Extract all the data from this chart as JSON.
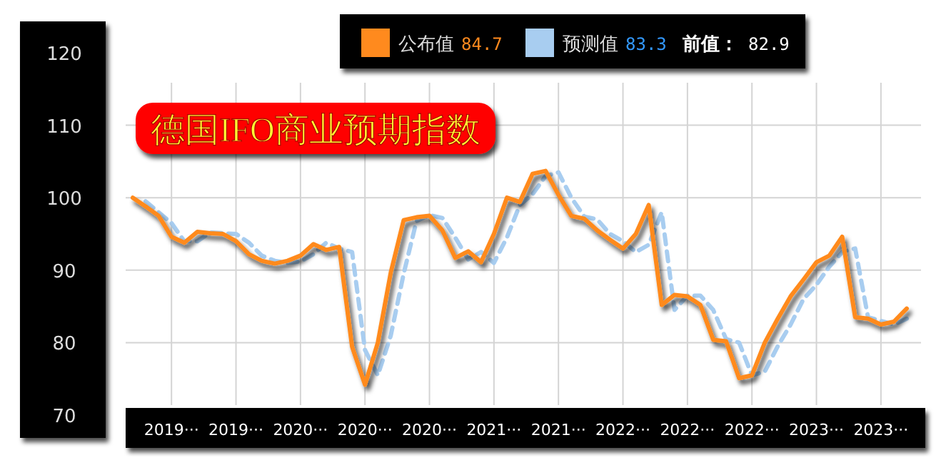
{
  "chart_data": {
    "type": "line",
    "title": "德国IFO商业预期指数",
    "categories": [
      null,
      null,
      null,
      "2019···",
      null,
      null,
      null,
      null,
      "2019···",
      null,
      null,
      null,
      null,
      "2020···",
      null,
      null,
      null,
      null,
      "2020···",
      null,
      null,
      null,
      null,
      "2020···",
      null,
      null,
      null,
      null,
      "2021···",
      null,
      null,
      null,
      null,
      "2021···",
      null,
      null,
      null,
      null,
      "2022···",
      null,
      null,
      null,
      null,
      "2022···",
      null,
      null,
      null,
      null,
      "2022···",
      null,
      null,
      null,
      null,
      "2023···",
      null,
      null,
      null,
      null,
      "2023···",
      null,
      null
    ],
    "series": [
      {
        "name": "公布值",
        "color": "#ff8a1e",
        "line_style": "solid",
        "values": [
          100.0,
          98.8,
          97.5,
          94.6,
          93.8,
          95.3,
          95.1,
          95.0,
          94.0,
          92.2,
          91.3,
          90.9,
          91.3,
          92.0,
          93.6,
          92.8,
          93.2,
          79.4,
          74.2,
          80.0,
          89.7,
          96.9,
          97.3,
          97.5,
          95.5,
          91.7,
          92.6,
          91.1,
          95.0,
          100.0,
          99.4,
          103.3,
          103.7,
          100.4,
          97.5,
          97.1,
          95.5,
          94.2,
          93.0,
          95.0,
          99.0,
          85.2,
          86.6,
          86.4,
          85.2,
          80.4,
          80.2,
          75.1,
          75.5,
          80.0,
          83.3,
          86.4,
          88.7,
          91.1,
          92.0,
          94.6,
          83.5,
          83.3,
          82.5,
          82.9,
          84.7
        ]
      },
      {
        "name": "预测值",
        "color": "#a8cdf0",
        "line_style": "dashed",
        "values": [
          null,
          99.5,
          98.0,
          96.5,
          94.0,
          94.0,
          95.2,
          95.1,
          95.0,
          93.8,
          92.0,
          91.3,
          91.0,
          91.2,
          92.2,
          93.8,
          93.0,
          92.5,
          79.0,
          75.5,
          81.0,
          89.5,
          96.8,
          97.6,
          97.2,
          94.5,
          91.5,
          92.5,
          91.0,
          94.5,
          99.0,
          100.5,
          103.0,
          103.5,
          100.0,
          97.4,
          97.0,
          95.0,
          94.0,
          92.5,
          93.5,
          98.0,
          84.5,
          86.5,
          86.5,
          84.5,
          80.5,
          80.0,
          75.5,
          76.0,
          79.5,
          82.5,
          86.0,
          88.0,
          90.5,
          92.5,
          93.0,
          83.5,
          83.0,
          82.5,
          83.3
        ]
      }
    ],
    "annotations": [
      "84.7",
      "83.3",
      "前值：",
      "82.9"
    ],
    "ylim": [
      70,
      120
    ],
    "yticks": [
      70,
      80,
      90,
      100,
      110,
      120
    ],
    "grid": true,
    "legend": "top"
  }
}
